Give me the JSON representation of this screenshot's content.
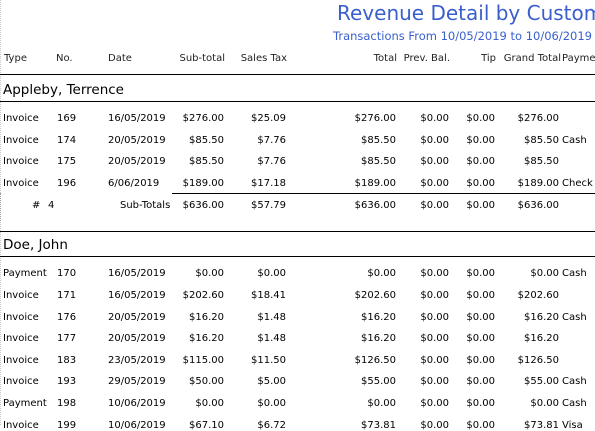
{
  "report": {
    "title": "Revenue Detail by Customer",
    "subtitle": "Transactions From 10/05/2019 to 10/06/2019"
  },
  "columns": {
    "type": "Type",
    "no": "No.",
    "date": "Date",
    "subtotal": "Sub-total",
    "tax": "Sales Tax",
    "total": "Total",
    "prev": "Prev. Bal.",
    "tip": "Tip",
    "grand": "Grand Total",
    "payment": "Payment"
  },
  "groups": [
    {
      "name": "Appleby, Terrence",
      "rows": [
        {
          "type": "Invoice",
          "no": "169",
          "date": "16/05/2019",
          "subtotal": "$276.00",
          "tax": "$25.09",
          "total": "$276.00",
          "prev": "$0.00",
          "tip": "$0.00",
          "grand": "$276.00",
          "payment": ""
        },
        {
          "type": "Invoice",
          "no": "174",
          "date": "20/05/2019",
          "subtotal": "$85.50",
          "tax": "$7.76",
          "total": "$85.50",
          "prev": "$0.00",
          "tip": "$0.00",
          "grand": "$85.50",
          "payment": "Cash"
        },
        {
          "type": "Invoice",
          "no": "175",
          "date": "20/05/2019",
          "subtotal": "$85.50",
          "tax": "$7.76",
          "total": "$85.50",
          "prev": "$0.00",
          "tip": "$0.00",
          "grand": "$85.50",
          "payment": ""
        },
        {
          "type": "Invoice",
          "no": "196",
          "date": "6/06/2019",
          "subtotal": "$189.00",
          "tax": "$17.18",
          "total": "$189.00",
          "prev": "$0.00",
          "tip": "$0.00",
          "grand": "$189.00",
          "payment": "Check"
        }
      ],
      "summary": {
        "hash": "#",
        "count": "4",
        "label": "Sub-Totals",
        "subtotal": "$636.00",
        "tax": "$57.79",
        "total": "$636.00",
        "prev": "$0.00",
        "tip": "$0.00",
        "grand": "$636.00"
      }
    },
    {
      "name": "Doe, John",
      "rows": [
        {
          "type": "Payment",
          "no": "170",
          "date": "16/05/2019",
          "subtotal": "$0.00",
          "tax": "$0.00",
          "total": "$0.00",
          "prev": "$0.00",
          "tip": "$0.00",
          "grand": "$0.00",
          "payment": "Cash"
        },
        {
          "type": "Invoice",
          "no": "171",
          "date": "16/05/2019",
          "subtotal": "$202.60",
          "tax": "$18.41",
          "total": "$202.60",
          "prev": "$0.00",
          "tip": "$0.00",
          "grand": "$202.60",
          "payment": ""
        },
        {
          "type": "Invoice",
          "no": "176",
          "date": "20/05/2019",
          "subtotal": "$16.20",
          "tax": "$1.48",
          "total": "$16.20",
          "prev": "$0.00",
          "tip": "$0.00",
          "grand": "$16.20",
          "payment": "Cash"
        },
        {
          "type": "Invoice",
          "no": "177",
          "date": "20/05/2019",
          "subtotal": "$16.20",
          "tax": "$1.48",
          "total": "$16.20",
          "prev": "$0.00",
          "tip": "$0.00",
          "grand": "$16.20",
          "payment": ""
        },
        {
          "type": "Invoice",
          "no": "183",
          "date": "23/05/2019",
          "subtotal": "$115.00",
          "tax": "$11.50",
          "total": "$126.50",
          "prev": "$0.00",
          "tip": "$0.00",
          "grand": "$126.50",
          "payment": ""
        },
        {
          "type": "Invoice",
          "no": "193",
          "date": "29/05/2019",
          "subtotal": "$50.00",
          "tax": "$5.00",
          "total": "$55.00",
          "prev": "$0.00",
          "tip": "$0.00",
          "grand": "$55.00",
          "payment": "Cash"
        },
        {
          "type": "Payment",
          "no": "198",
          "date": "10/06/2019",
          "subtotal": "$0.00",
          "tax": "$0.00",
          "total": "$0.00",
          "prev": "$0.00",
          "tip": "$0.00",
          "grand": "$0.00",
          "payment": "Cash"
        },
        {
          "type": "Invoice",
          "no": "199",
          "date": "10/06/2019",
          "subtotal": "$67.10",
          "tax": "$6.72",
          "total": "$73.81",
          "prev": "$0.00",
          "tip": "$0.00",
          "grand": "$73.81",
          "payment": "Visa"
        }
      ]
    }
  ],
  "colors": {
    "title": "#3a5fcd",
    "text": "#000000",
    "rule": "#000000"
  }
}
